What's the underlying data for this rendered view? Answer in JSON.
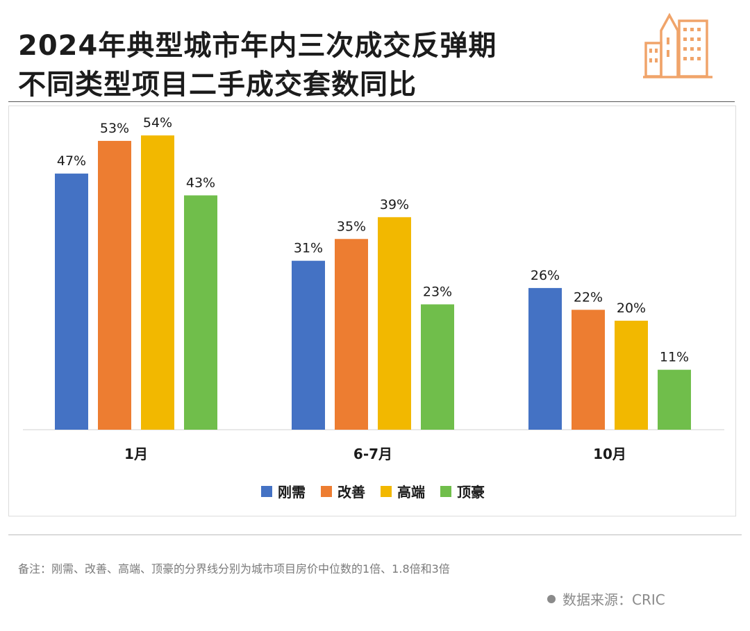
{
  "title": {
    "line1": "2024年典型城市年内三次成交反弹期",
    "line2": "不同类型项目二手成交套数同比"
  },
  "logo": {
    "icon": "city-buildings-icon",
    "color": "#F0A46A"
  },
  "chart_data": {
    "type": "bar",
    "categories": [
      "1月",
      "6-7月",
      "10月"
    ],
    "series": [
      {
        "name": "刚需",
        "color": "#4472C4",
        "values": [
          47,
          31,
          26
        ],
        "labels": [
          "47%",
          "31%",
          "26%"
        ]
      },
      {
        "name": "改善",
        "color": "#ED7D31",
        "values": [
          53,
          35,
          22
        ],
        "labels": [
          "53%",
          "35%",
          "22%"
        ]
      },
      {
        "name": "高端",
        "color": "#F2B800",
        "values": [
          54,
          39,
          20
        ],
        "labels": [
          "54%",
          "39%",
          "20%"
        ]
      },
      {
        "name": "顶豪",
        "color": "#70BE4B",
        "values": [
          43,
          23,
          11
        ],
        "labels": [
          "43%",
          "23%",
          "11%"
        ]
      }
    ],
    "ylim": [
      0,
      60
    ],
    "value_unit": "%",
    "grid": false,
    "legend_position": "bottom-center"
  },
  "footnote": "备注：刚需、改善、高端、顶豪的分界线分别为城市项目房价中位数的1倍、1.8倍和3倍",
  "source": "数据来源：CRIC"
}
